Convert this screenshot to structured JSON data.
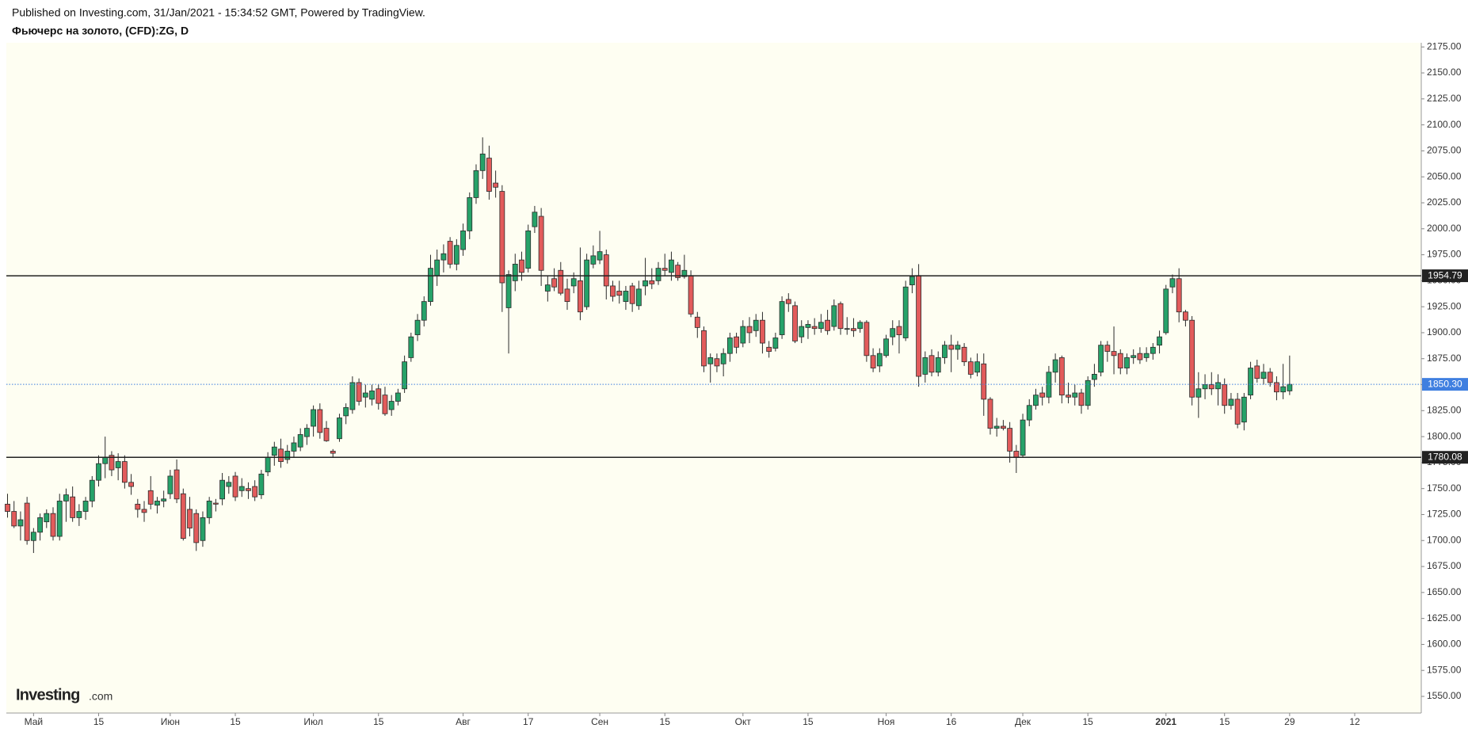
{
  "header": {
    "published": "Published on Investing.com, 31/Jan/2021 - 15:34:52 GMT, Powered by TradingView.",
    "symbol": "Фьючерс на золото, (CFD):ZG, D"
  },
  "logo": {
    "name": "Investing",
    "suffix": ".com"
  },
  "chart_data": {
    "type": "candlestick",
    "up_color": "#26a269",
    "down_color": "#e25b5b",
    "border_color": "#2b2b2b",
    "background": "#fefef2",
    "ylim": [
      1534,
      2179
    ],
    "yticks": [
      {
        "value": 1550,
        "label": "1550.00"
      },
      {
        "value": 1575,
        "label": "1575.00"
      },
      {
        "value": 1600,
        "label": "1600.00"
      },
      {
        "value": 1625,
        "label": "1625.00"
      },
      {
        "value": 1650,
        "label": "1650.00"
      },
      {
        "value": 1675,
        "label": "1675.00"
      },
      {
        "value": 1700,
        "label": "1700.00"
      },
      {
        "value": 1725,
        "label": "1725.00"
      },
      {
        "value": 1750,
        "label": "1750.00"
      },
      {
        "value": 1775,
        "label": "1775.00"
      },
      {
        "value": 1800,
        "label": "1800.00"
      },
      {
        "value": 1825,
        "label": "1825.00"
      },
      {
        "value": 1850,
        "label": "1850.00"
      },
      {
        "value": 1875,
        "label": "1875.00"
      },
      {
        "value": 1900,
        "label": "1900.00"
      },
      {
        "value": 1925,
        "label": "1925.00"
      },
      {
        "value": 1950,
        "label": "1950.00"
      },
      {
        "value": 1975,
        "label": "1975.00"
      },
      {
        "value": 2000,
        "label": "2000.00"
      },
      {
        "value": 2025,
        "label": "2025.00"
      },
      {
        "value": 2050,
        "label": "2050.00"
      },
      {
        "value": 2075,
        "label": "2075.00"
      },
      {
        "value": 2100,
        "label": "2100.00"
      },
      {
        "value": 2125,
        "label": "2125.00"
      },
      {
        "value": 2150,
        "label": "2150.00"
      },
      {
        "value": 2175,
        "label": "2175.00"
      }
    ],
    "levels": [
      1954.79,
      1780.08
    ],
    "level_color": "#222222",
    "last_price": {
      "value": 1850.3,
      "label": "1850.30"
    },
    "last_price_color": "#3f7fe0",
    "categories": [
      null,
      null,
      null,
      null,
      "Май",
      null,
      null,
      null,
      null,
      null,
      null,
      null,
      null,
      null,
      "15",
      null,
      null,
      null,
      null,
      null,
      null,
      null,
      null,
      null,
      null,
      "Июн",
      null,
      null,
      null,
      null,
      null,
      null,
      null,
      null,
      null,
      "15",
      null,
      null,
      null,
      null,
      null,
      null,
      null,
      null,
      null,
      null,
      null,
      "Июл",
      null,
      null,
      null,
      null,
      null,
      null,
      null,
      null,
      null,
      "15",
      null,
      null,
      null,
      null,
      null,
      null,
      null,
      null,
      null,
      null,
      null,
      null,
      "Авг",
      null,
      null,
      null,
      null,
      null,
      null,
      null,
      null,
      null,
      "17",
      null,
      null,
      null,
      null,
      null,
      null,
      null,
      null,
      null,
      null,
      "Сен",
      null,
      null,
      null,
      null,
      null,
      null,
      null,
      null,
      null,
      "15",
      null,
      null,
      null,
      null,
      null,
      null,
      null,
      null,
      null,
      null,
      null,
      "Окт",
      null,
      null,
      null,
      null,
      null,
      null,
      null,
      null,
      null,
      "15",
      null,
      null,
      null,
      null,
      null,
      null,
      null,
      null,
      null,
      null,
      null,
      "Ноя",
      null,
      null,
      null,
      null,
      null,
      null,
      null,
      null,
      null,
      "16",
      null,
      null,
      null,
      null,
      null,
      null,
      null,
      null,
      null,
      null,
      "Дек",
      null,
      null,
      null,
      null,
      null,
      null,
      null,
      null,
      null,
      "15",
      null,
      null,
      null,
      null,
      null,
      null,
      null,
      null,
      null,
      null,
      null,
      "2021",
      null,
      null,
      null,
      null,
      null,
      null,
      null,
      null,
      "15",
      null,
      null,
      null,
      null,
      null,
      null,
      null,
      null,
      null,
      "29",
      null,
      null,
      null,
      null,
      null,
      null,
      null,
      null,
      null,
      "12"
    ],
    "ohlc": [
      [
        1735,
        1745,
        1722,
        1728
      ],
      [
        1728,
        1738,
        1712,
        1714
      ],
      [
        1714,
        1728,
        1700,
        1720
      ],
      [
        1736,
        1742,
        1696,
        1700
      ],
      [
        1700,
        1712,
        1688,
        1708
      ],
      [
        1708,
        1726,
        1700,
        1722
      ],
      [
        1718,
        1730,
        1712,
        1726
      ],
      [
        1726,
        1732,
        1700,
        1704
      ],
      [
        1704,
        1745,
        1700,
        1738
      ],
      [
        1738,
        1750,
        1718,
        1744
      ],
      [
        1742,
        1752,
        1718,
        1722
      ],
      [
        1722,
        1735,
        1714,
        1728
      ],
      [
        1728,
        1742,
        1720,
        1738
      ],
      [
        1738,
        1762,
        1732,
        1758
      ],
      [
        1758,
        1782,
        1752,
        1774
      ],
      [
        1774,
        1800,
        1760,
        1780
      ],
      [
        1782,
        1786,
        1762,
        1768
      ],
      [
        1770,
        1784,
        1758,
        1776
      ],
      [
        1776,
        1782,
        1750,
        1756
      ],
      [
        1756,
        1764,
        1744,
        1752
      ],
      [
        1735,
        1740,
        1722,
        1730
      ],
      [
        1730,
        1738,
        1718,
        1727
      ],
      [
        1748,
        1762,
        1730,
        1735
      ],
      [
        1734,
        1742,
        1726,
        1738
      ],
      [
        1738,
        1748,
        1732,
        1740
      ],
      [
        1745,
        1768,
        1740,
        1762
      ],
      [
        1768,
        1778,
        1736,
        1740
      ],
      [
        1745,
        1750,
        1700,
        1702
      ],
      [
        1730,
        1742,
        1704,
        1712
      ],
      [
        1726,
        1730,
        1690,
        1698
      ],
      [
        1700,
        1728,
        1694,
        1722
      ],
      [
        1722,
        1742,
        1716,
        1738
      ],
      [
        1736,
        1740,
        1728,
        1735
      ],
      [
        1740,
        1765,
        1734,
        1758
      ],
      [
        1752,
        1762,
        1745,
        1756
      ],
      [
        1762,
        1766,
        1738,
        1742
      ],
      [
        1748,
        1760,
        1742,
        1752
      ],
      [
        1750,
        1756,
        1740,
        1748
      ],
      [
        1752,
        1758,
        1738,
        1742
      ],
      [
        1744,
        1768,
        1740,
        1764
      ],
      [
        1766,
        1785,
        1762,
        1780
      ],
      [
        1782,
        1795,
        1772,
        1790
      ],
      [
        1788,
        1798,
        1770,
        1776
      ],
      [
        1778,
        1792,
        1774,
        1786
      ],
      [
        1786,
        1800,
        1780,
        1794
      ],
      [
        1790,
        1808,
        1786,
        1802
      ],
      [
        1800,
        1812,
        1792,
        1808
      ],
      [
        1810,
        1830,
        1800,
        1826
      ],
      [
        1826,
        1832,
        1798,
        1804
      ],
      [
        1808,
        1815,
        1795,
        1796
      ],
      [
        1786,
        1788,
        1780,
        1784
      ],
      [
        1798,
        1822,
        1795,
        1818
      ],
      [
        1820,
        1832,
        1812,
        1828
      ],
      [
        1826,
        1858,
        1822,
        1852
      ],
      [
        1852,
        1856,
        1830,
        1834
      ],
      [
        1838,
        1850,
        1828,
        1842
      ],
      [
        1836,
        1850,
        1830,
        1844
      ],
      [
        1846,
        1850,
        1826,
        1832
      ],
      [
        1840,
        1848,
        1820,
        1822
      ],
      [
        1826,
        1840,
        1820,
        1834
      ],
      [
        1834,
        1846,
        1830,
        1842
      ],
      [
        1846,
        1878,
        1842,
        1872
      ],
      [
        1876,
        1900,
        1872,
        1896
      ],
      [
        1898,
        1918,
        1892,
        1912
      ],
      [
        1912,
        1935,
        1906,
        1930
      ],
      [
        1930,
        1975,
        1926,
        1962
      ],
      [
        1955,
        1980,
        1945,
        1970
      ],
      [
        1970,
        1985,
        1958,
        1976
      ],
      [
        1988,
        1992,
        1962,
        1966
      ],
      [
        1966,
        1990,
        1960,
        1984
      ],
      [
        1980,
        2005,
        1974,
        1998
      ],
      [
        1998,
        2035,
        1990,
        2030
      ],
      [
        2030,
        2062,
        2024,
        2056
      ],
      [
        2056,
        2088,
        2048,
        2072
      ],
      [
        2068,
        2080,
        2028,
        2036
      ],
      [
        2044,
        2056,
        2030,
        2040
      ],
      [
        2036,
        2042,
        1920,
        1948
      ],
      [
        1924,
        1960,
        1880,
        1956
      ],
      [
        1950,
        1976,
        1940,
        1966
      ],
      [
        1970,
        1978,
        1950,
        1958
      ],
      [
        1962,
        2004,
        1958,
        1998
      ],
      [
        2002,
        2022,
        1996,
        2016
      ],
      [
        2012,
        2020,
        1945,
        1960
      ],
      [
        1940,
        1955,
        1930,
        1946
      ],
      [
        1952,
        1962,
        1940,
        1944
      ],
      [
        1960,
        1968,
        1936,
        1938
      ],
      [
        1942,
        1952,
        1922,
        1930
      ],
      [
        1945,
        1958,
        1938,
        1952
      ],
      [
        1950,
        1982,
        1912,
        1920
      ],
      [
        1925,
        1976,
        1922,
        1970
      ],
      [
        1966,
        1984,
        1962,
        1974
      ],
      [
        1970,
        1998,
        1966,
        1978
      ],
      [
        1975,
        1980,
        1932,
        1945
      ],
      [
        1945,
        1950,
        1930,
        1935
      ],
      [
        1940,
        1950,
        1928,
        1936
      ],
      [
        1930,
        1945,
        1922,
        1940
      ],
      [
        1945,
        1948,
        1920,
        1928
      ],
      [
        1926,
        1950,
        1922,
        1942
      ],
      [
        1945,
        1972,
        1936,
        1950
      ],
      [
        1950,
        1962,
        1942,
        1947
      ],
      [
        1950,
        1968,
        1946,
        1962
      ],
      [
        1962,
        1976,
        1955,
        1960
      ],
      [
        1958,
        1978,
        1950,
        1970
      ],
      [
        1965,
        1968,
        1950,
        1953
      ],
      [
        1954,
        1975,
        1952,
        1960
      ],
      [
        1955,
        1960,
        1915,
        1918
      ],
      [
        1915,
        1920,
        1895,
        1905
      ],
      [
        1902,
        1906,
        1862,
        1868
      ],
      [
        1870,
        1880,
        1852,
        1876
      ],
      [
        1875,
        1880,
        1862,
        1868
      ],
      [
        1870,
        1885,
        1858,
        1880
      ],
      [
        1880,
        1900,
        1872,
        1895
      ],
      [
        1896,
        1900,
        1880,
        1886
      ],
      [
        1890,
        1912,
        1886,
        1906
      ],
      [
        1906,
        1915,
        1890,
        1900
      ],
      [
        1902,
        1918,
        1896,
        1912
      ],
      [
        1912,
        1920,
        1880,
        1890
      ],
      [
        1886,
        1892,
        1876,
        1882
      ],
      [
        1885,
        1900,
        1882,
        1895
      ],
      [
        1898,
        1935,
        1894,
        1930
      ],
      [
        1932,
        1938,
        1920,
        1928
      ],
      [
        1926,
        1930,
        1890,
        1892
      ],
      [
        1896,
        1912,
        1890,
        1906
      ],
      [
        1905,
        1912,
        1894,
        1908
      ],
      [
        1906,
        1914,
        1898,
        1904
      ],
      [
        1904,
        1918,
        1900,
        1910
      ],
      [
        1912,
        1922,
        1898,
        1902
      ],
      [
        1906,
        1932,
        1902,
        1926
      ],
      [
        1928,
        1930,
        1898,
        1904
      ],
      [
        1904,
        1915,
        1898,
        1904
      ],
      [
        1904,
        1914,
        1896,
        1902
      ],
      [
        1904,
        1912,
        1900,
        1910
      ],
      [
        1910,
        1912,
        1872,
        1878
      ],
      [
        1878,
        1885,
        1862,
        1866
      ],
      [
        1868,
        1885,
        1862,
        1880
      ],
      [
        1878,
        1898,
        1876,
        1894
      ],
      [
        1896,
        1912,
        1888,
        1904
      ],
      [
        1906,
        1912,
        1880,
        1898
      ],
      [
        1895,
        1950,
        1892,
        1944
      ],
      [
        1946,
        1962,
        1938,
        1954
      ],
      [
        1955,
        1966,
        1848,
        1858
      ],
      [
        1860,
        1882,
        1852,
        1876
      ],
      [
        1878,
        1884,
        1858,
        1862
      ],
      [
        1862,
        1882,
        1858,
        1876
      ],
      [
        1876,
        1892,
        1870,
        1888
      ],
      [
        1888,
        1898,
        1862,
        1884
      ],
      [
        1884,
        1892,
        1874,
        1888
      ],
      [
        1886,
        1890,
        1868,
        1872
      ],
      [
        1872,
        1876,
        1856,
        1860
      ],
      [
        1862,
        1880,
        1858,
        1872
      ],
      [
        1870,
        1880,
        1820,
        1836
      ],
      [
        1836,
        1838,
        1802,
        1808
      ],
      [
        1808,
        1818,
        1800,
        1810
      ],
      [
        1810,
        1816,
        1806,
        1808
      ],
      [
        1808,
        1814,
        1775,
        1786
      ],
      [
        1786,
        1792,
        1765,
        1780
      ],
      [
        1782,
        1822,
        1780,
        1816
      ],
      [
        1816,
        1836,
        1810,
        1830
      ],
      [
        1830,
        1846,
        1826,
        1840
      ],
      [
        1842,
        1848,
        1830,
        1838
      ],
      [
        1838,
        1868,
        1832,
        1862
      ],
      [
        1862,
        1880,
        1852,
        1874
      ],
      [
        1876,
        1878,
        1832,
        1840
      ],
      [
        1840,
        1852,
        1832,
        1838
      ],
      [
        1838,
        1850,
        1830,
        1842
      ],
      [
        1842,
        1846,
        1822,
        1830
      ],
      [
        1830,
        1858,
        1826,
        1854
      ],
      [
        1855,
        1870,
        1848,
        1860
      ],
      [
        1862,
        1892,
        1858,
        1888
      ],
      [
        1888,
        1892,
        1872,
        1882
      ],
      [
        1882,
        1906,
        1860,
        1878
      ],
      [
        1880,
        1884,
        1860,
        1866
      ],
      [
        1866,
        1880,
        1860,
        1876
      ],
      [
        1876,
        1884,
        1870,
        1878
      ],
      [
        1880,
        1886,
        1870,
        1874
      ],
      [
        1876,
        1886,
        1872,
        1880
      ],
      [
        1880,
        1890,
        1874,
        1886
      ],
      [
        1888,
        1902,
        1880,
        1896
      ],
      [
        1900,
        1946,
        1898,
        1942
      ],
      [
        1944,
        1956,
        1938,
        1952
      ],
      [
        1952,
        1962,
        1910,
        1920
      ],
      [
        1920,
        1922,
        1906,
        1912
      ],
      [
        1912,
        1916,
        1830,
        1838
      ],
      [
        1838,
        1862,
        1818,
        1846
      ],
      [
        1846,
        1860,
        1836,
        1850
      ],
      [
        1850,
        1862,
        1840,
        1846
      ],
      [
        1846,
        1860,
        1830,
        1852
      ],
      [
        1850,
        1856,
        1822,
        1830
      ],
      [
        1830,
        1842,
        1826,
        1836
      ],
      [
        1836,
        1842,
        1808,
        1812
      ],
      [
        1814,
        1842,
        1806,
        1838
      ],
      [
        1840,
        1872,
        1836,
        1866
      ],
      [
        1868,
        1874,
        1852,
        1856
      ],
      [
        1856,
        1870,
        1850,
        1862
      ],
      [
        1862,
        1866,
        1848,
        1852
      ],
      [
        1852,
        1858,
        1835,
        1843
      ],
      [
        1843,
        1870,
        1836,
        1848
      ],
      [
        1844,
        1878,
        1840,
        1850.3
      ],
      null,
      null,
      null,
      null,
      null,
      null,
      null,
      null,
      null,
      null
    ]
  }
}
